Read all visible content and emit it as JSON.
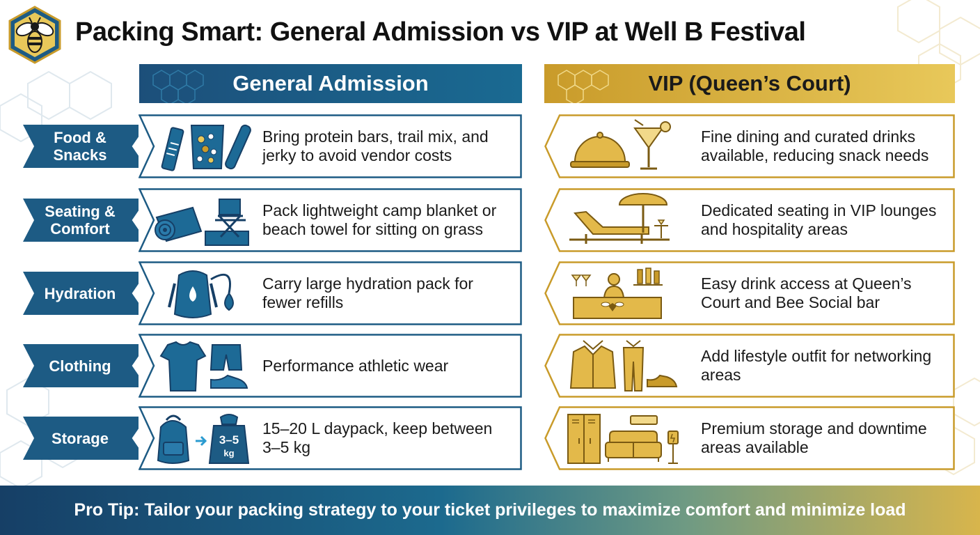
{
  "title": "Packing Smart: General Admission vs VIP at Well B Festival",
  "general": {
    "header": "General Admission"
  },
  "vip": {
    "header": "VIP (Queen’s Court)"
  },
  "rows": [
    {
      "category_line1": "Food &",
      "category_line2": "Snacks",
      "general_text": "Bring protein bars, trail mix, and jerky to avoid vendor costs",
      "general_icon": "snack-bars-icon",
      "vip_text": "Fine dining and curated drinks available, reducing snack needs",
      "vip_icon": "cloche-cocktail-icon"
    },
    {
      "category_line1": "Seating &",
      "category_line2": "Comfort",
      "general_text": "Pack lightweight camp blanket or beach towel for sitting on grass",
      "general_icon": "blanket-chair-icon",
      "vip_text": "Dedicated seating in VIP lounges and hospitality areas",
      "vip_icon": "lounge-chair-umbrella-icon"
    },
    {
      "category_line1": "Hydration",
      "category_line2": "",
      "general_text": "Carry large hydration pack for fewer refills",
      "general_icon": "hydration-pack-icon",
      "vip_text": "Easy drink access at Queen’s Court and Bee Social bar",
      "vip_icon": "bartender-bar-icon"
    },
    {
      "category_line1": "Clothing",
      "category_line2": "",
      "general_text": "Performance athletic wear",
      "general_icon": "athletic-wear-icon",
      "vip_text": "Add lifestyle outfit for networking areas",
      "vip_icon": "suit-shoes-icon"
    },
    {
      "category_line1": "Storage",
      "category_line2": "",
      "general_text": "15–20 L daypack, keep between 3–5 kg",
      "general_icon": "daypack-weight-icon",
      "general_weight_top": "3–5",
      "general_weight_bottom": "kg",
      "vip_text": "Premium storage and downtime areas available",
      "vip_icon": "lockers-sofa-icon"
    }
  ],
  "footer": "Pro Tip: Tailor your packing strategy to your ticket privileges to maximize comfort and minimize load",
  "colors": {
    "navy": "#1d5b84",
    "gold": "#c99b2a",
    "dark_navy": "#163f66"
  }
}
